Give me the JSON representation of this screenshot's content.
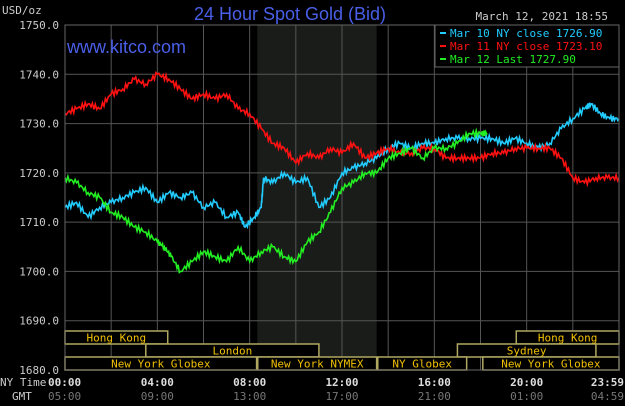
{
  "chart_data": {
    "type": "line",
    "title": "24 Hour Spot Gold (Bid)",
    "ylabel": "USD/oz",
    "timestamp": "March 12, 2021 18:55",
    "watermark": "www.kitco.com",
    "ylim": [
      1680,
      1750
    ],
    "xlim_hours": [
      0,
      24
    ],
    "grid": true,
    "legend_placement": "top-right",
    "y_ticks": [
      "1750.0",
      "1740.0",
      "1730.0",
      "1720.0",
      "1710.0",
      "1700.0",
      "1690.0",
      "1680.0"
    ],
    "x_axis_rows": [
      {
        "label": "NY Time",
        "ticks": [
          "00:00",
          "04:00",
          "08:00",
          "12:00",
          "16:00",
          "20:00",
          "23:59"
        ]
      },
      {
        "label": "GMT",
        "ticks": [
          "05:00",
          "09:00",
          "13:00",
          "17:00",
          "21:00",
          "01:00",
          "04:59"
        ]
      }
    ],
    "shaded_region_hours": [
      8.33,
      13.5
    ],
    "sessions": [
      {
        "name": "Hong Kong",
        "row": 0,
        "start": 0,
        "end": 4.45
      },
      {
        "name": "Hong Kong",
        "row": 0,
        "start": 19.55,
        "end": 24
      },
      {
        "name": "London",
        "row": 1,
        "start": 3.5,
        "end": 11
      },
      {
        "name": "Sydney",
        "row": 1,
        "start": 17,
        "end": 23
      },
      {
        "name": "New York Globex",
        "row": 2,
        "start": 0,
        "end": 8.3
      },
      {
        "name": "New York NYMEX",
        "row": 2,
        "start": 8.35,
        "end": 13.5
      },
      {
        "name": "NY Globex",
        "row": 2,
        "start": 13.55,
        "end": 17.4
      },
      {
        "name": "New York Globex",
        "row": 2,
        "start": 18.1,
        "end": 24
      }
    ],
    "series": [
      {
        "name": "Mar 10 NY close 1726.90",
        "color": "#22ccff",
        "x": [
          0,
          0.5,
          1,
          1.5,
          2,
          2.5,
          3,
          3.5,
          4,
          4.5,
          5,
          5.5,
          6,
          6.5,
          7,
          7.5,
          7.8,
          8.2,
          8.5,
          8.6,
          9,
          9.5,
          10,
          10.5,
          11,
          11.5,
          12,
          12.5,
          13,
          13.5,
          14,
          14.5,
          15,
          15.5,
          16,
          16.5,
          17,
          17.5,
          18,
          18.5,
          19,
          19.5,
          20,
          20.5,
          21,
          21.5,
          22,
          22.5,
          22.8,
          23.2,
          23.6,
          24
        ],
        "y": [
          1713,
          1714,
          1711,
          1713,
          1714,
          1715,
          1716,
          1717,
          1714,
          1716,
          1715,
          1716,
          1713,
          1714,
          1711,
          1712,
          1709,
          1711,
          1713,
          1719,
          1718,
          1720,
          1718,
          1719,
          1713,
          1715,
          1720,
          1721,
          1722,
          1723,
          1725,
          1726,
          1725,
          1726,
          1726,
          1727,
          1727,
          1727,
          1727,
          1727,
          1726,
          1727,
          1726,
          1725,
          1726,
          1729,
          1731,
          1733,
          1734,
          1732,
          1731,
          1731
        ]
      },
      {
        "name": "Mar 11 NY close 1723.10",
        "color": "#ff1111",
        "x": [
          0,
          0.5,
          1,
          1.5,
          2,
          2.5,
          3,
          3.5,
          4,
          4.5,
          5,
          5.5,
          6,
          6.5,
          7,
          7.5,
          8,
          8.5,
          9,
          9.5,
          10,
          10.5,
          11,
          11.5,
          12,
          12.5,
          13,
          13.5,
          14,
          14.5,
          15,
          15.5,
          16,
          16.5,
          17,
          17.5,
          18,
          18.5,
          19,
          19.5,
          20,
          20.5,
          21,
          21.5,
          22,
          22.5,
          23,
          23.5,
          24
        ],
        "y": [
          1732,
          1733,
          1734,
          1733,
          1736,
          1737,
          1739,
          1738,
          1740,
          1739,
          1737,
          1735,
          1736,
          1735,
          1736,
          1733,
          1732,
          1729,
          1726,
          1725,
          1722,
          1724,
          1723,
          1725,
          1724,
          1726,
          1723,
          1724,
          1725,
          1724,
          1724,
          1725,
          1725,
          1723,
          1723,
          1723,
          1723,
          1724,
          1724,
          1725,
          1725,
          1725,
          1725,
          1723,
          1719,
          1718,
          1719,
          1719,
          1719
        ]
      },
      {
        "name": "Mar 12 Last 1727.90",
        "color": "#22ee22",
        "x": [
          0,
          0.5,
          1,
          1.5,
          2,
          2.5,
          3,
          3.5,
          4,
          4.3,
          4.6,
          5,
          5.5,
          6,
          6.5,
          7,
          7.5,
          8,
          8.5,
          9,
          9.5,
          10,
          10.5,
          11,
          11.5,
          12,
          12.5,
          13,
          13.5,
          14,
          14.5,
          15,
          15.5,
          16,
          16.5,
          17,
          17.5,
          18,
          18.3
        ],
        "y": [
          1719,
          1718,
          1716,
          1715,
          1712,
          1711,
          1709,
          1708,
          1706,
          1705,
          1703,
          1700,
          1702,
          1704,
          1703,
          1702,
          1705,
          1702,
          1704,
          1705,
          1703,
          1702,
          1706,
          1708,
          1712,
          1717,
          1718,
          1720,
          1720,
          1723,
          1724,
          1725,
          1723,
          1725,
          1725,
          1726,
          1728,
          1728,
          1728
        ]
      }
    ]
  }
}
